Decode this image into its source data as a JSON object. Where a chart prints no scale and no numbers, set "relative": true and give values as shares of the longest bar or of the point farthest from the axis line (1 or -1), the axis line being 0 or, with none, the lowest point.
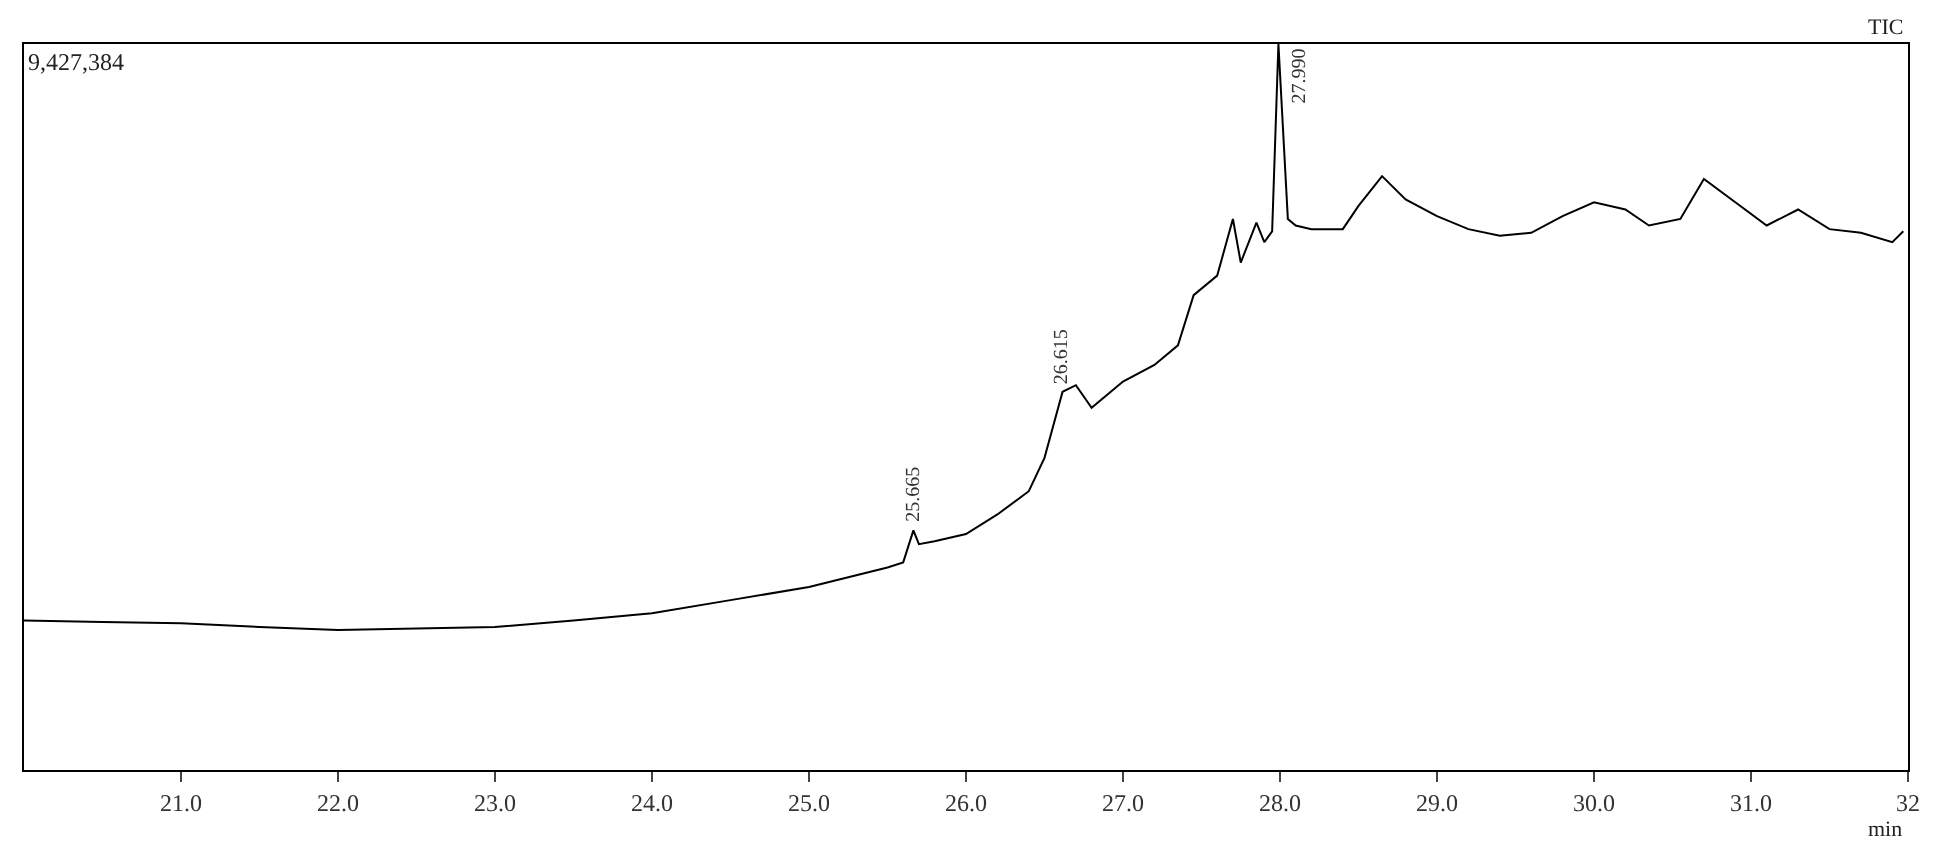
{
  "chart_data": {
    "type": "line",
    "relative": true,
    "xlabel": "min",
    "color": "#000000",
    "x": [
      20.0,
      20.5,
      21.0,
      21.5,
      22.0,
      22.5,
      23.0,
      23.5,
      24.0,
      24.5,
      25.0,
      25.5,
      25.6,
      25.665,
      25.7,
      25.8,
      26.0,
      26.2,
      26.4,
      26.5,
      26.615,
      26.7,
      26.8,
      27.0,
      27.2,
      27.35,
      27.45,
      27.6,
      27.7,
      27.75,
      27.85,
      27.9,
      27.95,
      27.99,
      28.05,
      28.1,
      28.2,
      28.4,
      28.5,
      28.65,
      28.8,
      29.0,
      29.2,
      29.4,
      29.6,
      29.8,
      30.0,
      30.2,
      30.35,
      30.55,
      30.7,
      30.9,
      31.1,
      31.3,
      31.5,
      31.7,
      31.9,
      31.97
    ],
    "values": [
      0.206,
      0.204,
      0.202,
      0.197,
      0.193,
      0.195,
      0.197,
      0.206,
      0.216,
      0.234,
      0.252,
      0.279,
      0.286,
      0.33,
      0.311,
      0.315,
      0.325,
      0.352,
      0.384,
      0.43,
      0.521,
      0.53,
      0.499,
      0.535,
      0.558,
      0.585,
      0.654,
      0.681,
      0.759,
      0.699,
      0.754,
      0.727,
      0.742,
      1.0,
      0.759,
      0.75,
      0.745,
      0.745,
      0.777,
      0.818,
      0.786,
      0.763,
      0.745,
      0.736,
      0.74,
      0.763,
      0.782,
      0.772,
      0.75,
      0.759,
      0.814,
      0.782,
      0.75,
      0.772,
      0.745,
      0.74,
      0.727,
      0.742
    ],
    "xlim": [
      20.0,
      32.0
    ],
    "xticks": [
      {
        "value": 21,
        "label": "21.0"
      },
      {
        "value": 22,
        "label": "22.0"
      },
      {
        "value": 23,
        "label": "23.0"
      },
      {
        "value": 24,
        "label": "24.0"
      },
      {
        "value": 25,
        "label": "25.0"
      },
      {
        "value": 26,
        "label": "26.0"
      },
      {
        "value": 27,
        "label": "27.0"
      },
      {
        "value": 28,
        "label": "28.0"
      },
      {
        "value": 29,
        "label": "29.0"
      },
      {
        "value": 30,
        "label": "30.0"
      },
      {
        "value": 31,
        "label": "31.0"
      },
      {
        "value": 32,
        "label": "32"
      }
    ],
    "annotations": [
      "9,427,384",
      "TIC",
      {
        "text": "25.665",
        "x": 25.665,
        "y": 0.33
      },
      {
        "text": "26.615",
        "x": 26.615,
        "y": 0.521
      },
      {
        "text": "27.990",
        "x": 27.99,
        "y": 1.0
      }
    ],
    "marker": "none",
    "line_style": "solid"
  }
}
